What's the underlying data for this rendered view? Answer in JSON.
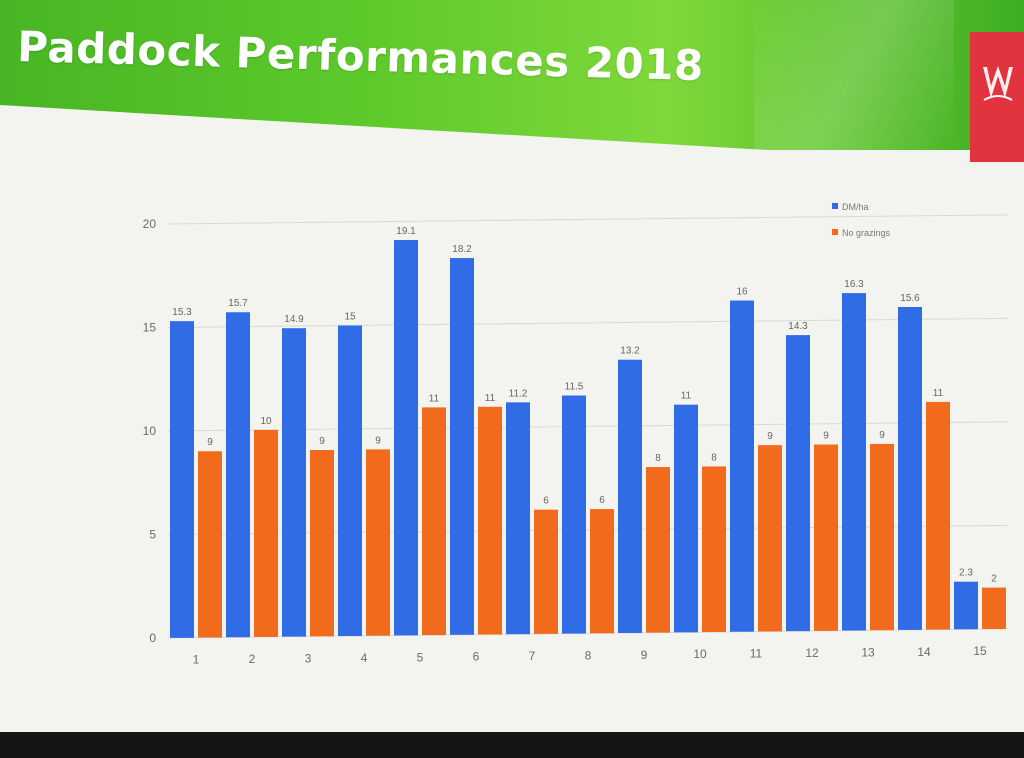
{
  "slide": {
    "title": "Paddock Performances 2018"
  },
  "colors": {
    "series1": "#2f6ce5",
    "series2": "#f26a1b",
    "banner": "#52c228",
    "logo_bg": "#e2343f"
  },
  "chart_data": {
    "type": "bar",
    "categories": [
      "1",
      "2",
      "3",
      "4",
      "5",
      "6",
      "7",
      "8",
      "9",
      "10",
      "11",
      "12",
      "13",
      "14",
      "15"
    ],
    "series": [
      {
        "name": "DM/ha",
        "values": [
          15.3,
          15.7,
          14.9,
          15,
          19.1,
          18.2,
          11.2,
          11.5,
          13.2,
          11,
          16,
          14.3,
          16.3,
          15.6,
          2.3
        ]
      },
      {
        "name": "No grazings",
        "values": [
          9,
          10,
          9,
          9,
          11,
          11,
          6,
          6,
          8,
          8,
          9,
          9,
          9,
          11,
          2
        ]
      }
    ],
    "ylim": [
      0,
      20
    ],
    "yticks": [
      "0",
      "5",
      "10",
      "15",
      "20"
    ],
    "grid": true,
    "legend": "top-right"
  }
}
